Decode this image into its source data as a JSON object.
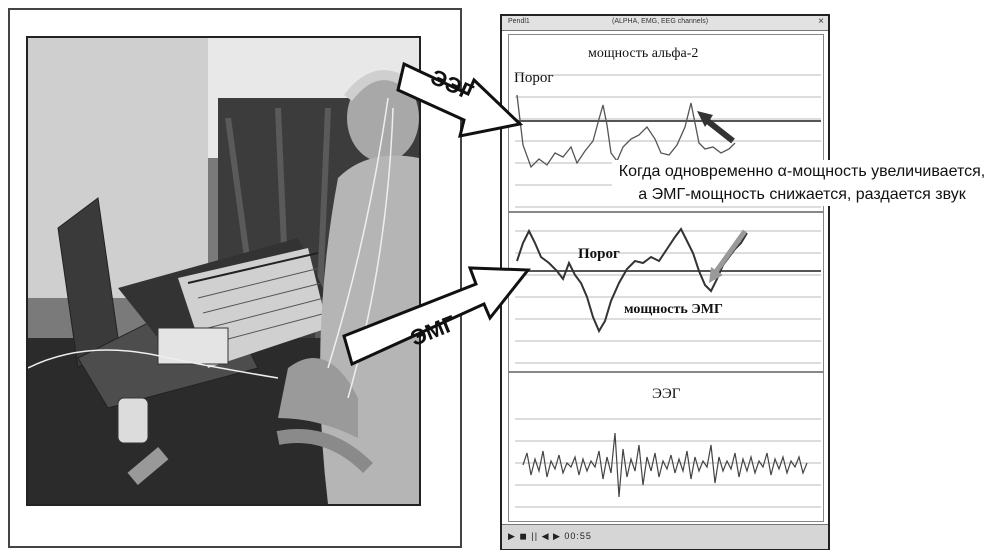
{
  "screen": {
    "titlebar_left": "Pendl1",
    "titlebar_center": "(ALPHA, EMG, EEG channels)",
    "titlebar_close": "×",
    "eeg_alpha_title": "мощность альфа-2",
    "eeg_threshold_label": "Порог",
    "emg_threshold_label": "Порог",
    "emg_power_label": "мощность ЭМГ",
    "eeg_raw_title": "ЭЭГ",
    "statusbar_text": "▶ ◼ ||  ◀ ▶  00:55"
  },
  "arrows": {
    "eeg_label": "ЭЭГ",
    "emg_label": "ЭМГ"
  },
  "callout": {
    "line1": "Когда одновременно α-мощность увеличивается,",
    "line2": "а ЭМГ-мощность снижается, раздается звук"
  },
  "colors": {
    "trace": "#555555",
    "threshold": "#666666",
    "arrow_fill": "#ffffff",
    "arrow_stroke": "#111111"
  }
}
